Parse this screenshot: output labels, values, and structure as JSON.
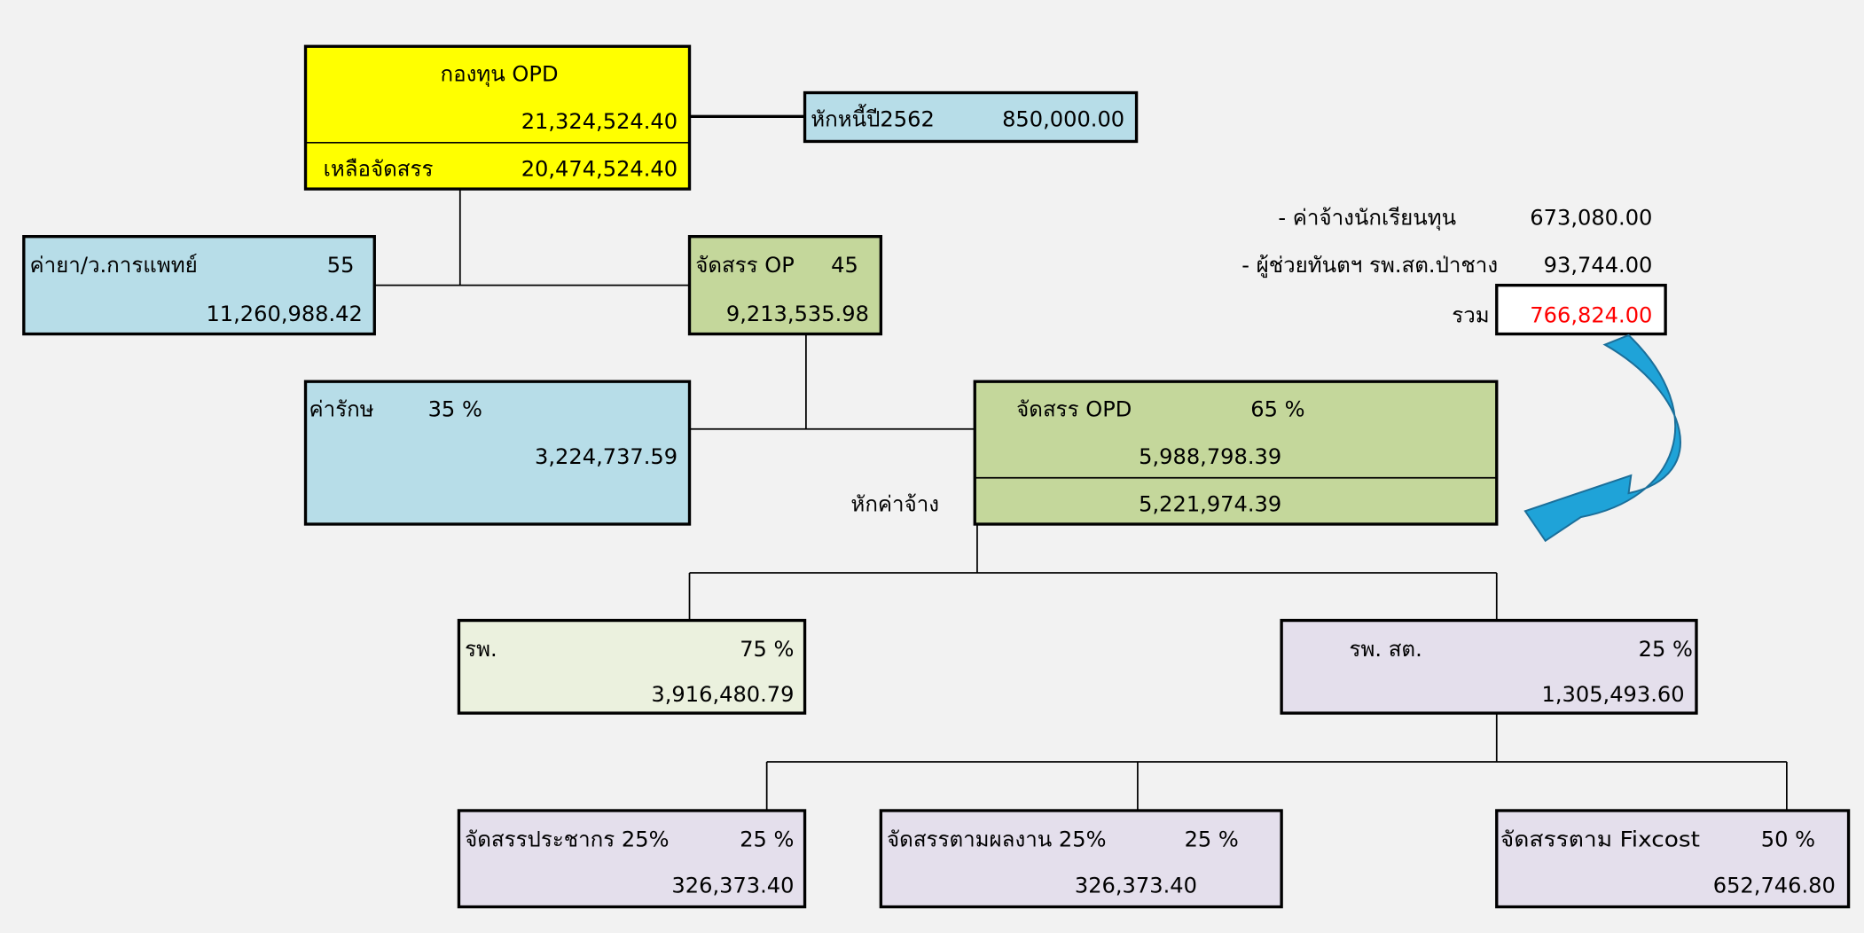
{
  "nodes": [
    {
      "label": "กองทุน OPD",
      "value": "21,324,524.40",
      "remaining_label": "เหลือจัดสรร",
      "remaining_value": "20,474,524.40"
    },
    {
      "label": "หักหนี้ปี2562",
      "value": "850,000.00"
    },
    {
      "label": "ค่ายา/ว.การแพทย์",
      "percent": "55",
      "value": "11,260,988.42"
    },
    {
      "label": "จัดสรร OP",
      "percent": "45",
      "value": "9,213,535.98"
    },
    {
      "label": "ค่ารักษ",
      "percent": "35 %",
      "value": "3,224,737.59"
    },
    {
      "label": "จัดสรร OPD",
      "percent": "65 %",
      "value": "5,988,798.39",
      "deduction_label": "หักค่าจ้าง",
      "after_deduction": "5,221,974.39"
    },
    {
      "label": "รพ.",
      "percent": "75 %",
      "value": "3,916,480.79"
    },
    {
      "label": "รพ. สต.",
      "percent": "25 %",
      "value": "1,305,493.60"
    },
    {
      "label": "จัดสรรประชากร 25%",
      "percent": "25 %",
      "value": "326,373.40"
    },
    {
      "label": "จัดสรรตามผลงาน 25%",
      "percent": "25 %",
      "value": "326,373.40"
    },
    {
      "label": "จัดสรรตาม Fixcost",
      "percent": "50 %",
      "value": "652,746.80"
    }
  ],
  "wage_deductions": {
    "items": [
      {
        "label": "- ค่าจ้างนักเรียนทุน",
        "value": "673,080.00"
      },
      {
        "label": "- ผู้ช่วยทันตฯ รพ.สต.ป่าชาง",
        "value": "93,744.00"
      }
    ],
    "total_label": "รวม",
    "total": "766,824.00"
  }
}
